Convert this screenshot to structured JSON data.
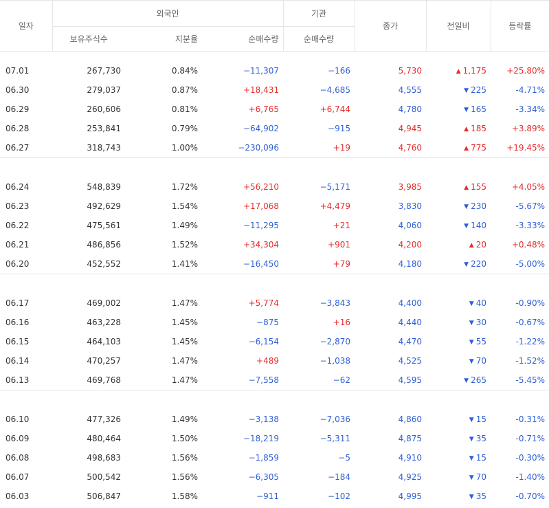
{
  "headers": {
    "date": "일자",
    "foreign": "외국인",
    "institution": "기관",
    "holdings": "보유주식수",
    "ratio": "지분율",
    "foreign_net": "순매수량",
    "inst_net": "순매수량",
    "close": "종가",
    "change": "전일비",
    "rate": "등락률"
  },
  "colors": {
    "up": "#e82b2b",
    "down": "#2f5fd6",
    "border": "#e5e5e5"
  },
  "groups": [
    [
      {
        "date": "07.01",
        "holdings": "267,730",
        "ratio": "0.84%",
        "foreign_net": "−11,307",
        "inst_net": "−166",
        "close": "5,730",
        "dir": "up",
        "change": "1,175",
        "rate": "+25.80%"
      },
      {
        "date": "06.30",
        "holdings": "279,037",
        "ratio": "0.87%",
        "foreign_net": "+18,431",
        "inst_net": "−4,685",
        "close": "4,555",
        "dir": "down",
        "change": "225",
        "rate": "-4.71%"
      },
      {
        "date": "06.29",
        "holdings": "260,606",
        "ratio": "0.81%",
        "foreign_net": "+6,765",
        "inst_net": "+6,744",
        "close": "4,780",
        "dir": "down",
        "change": "165",
        "rate": "-3.34%"
      },
      {
        "date": "06.28",
        "holdings": "253,841",
        "ratio": "0.79%",
        "foreign_net": "−64,902",
        "inst_net": "−915",
        "close": "4,945",
        "dir": "up",
        "change": "185",
        "rate": "+3.89%"
      },
      {
        "date": "06.27",
        "holdings": "318,743",
        "ratio": "1.00%",
        "foreign_net": "−230,096",
        "inst_net": "+19",
        "close": "4,760",
        "dir": "up",
        "change": "775",
        "rate": "+19.45%"
      }
    ],
    [
      {
        "date": "06.24",
        "holdings": "548,839",
        "ratio": "1.72%",
        "foreign_net": "+56,210",
        "inst_net": "−5,171",
        "close": "3,985",
        "dir": "up",
        "change": "155",
        "rate": "+4.05%"
      },
      {
        "date": "06.23",
        "holdings": "492,629",
        "ratio": "1.54%",
        "foreign_net": "+17,068",
        "inst_net": "+4,479",
        "close": "3,830",
        "dir": "down",
        "change": "230",
        "rate": "-5.67%"
      },
      {
        "date": "06.22",
        "holdings": "475,561",
        "ratio": "1.49%",
        "foreign_net": "−11,295",
        "inst_net": "+21",
        "close": "4,060",
        "dir": "down",
        "change": "140",
        "rate": "-3.33%"
      },
      {
        "date": "06.21",
        "holdings": "486,856",
        "ratio": "1.52%",
        "foreign_net": "+34,304",
        "inst_net": "+901",
        "close": "4,200",
        "dir": "up",
        "change": "20",
        "rate": "+0.48%"
      },
      {
        "date": "06.20",
        "holdings": "452,552",
        "ratio": "1.41%",
        "foreign_net": "−16,450",
        "inst_net": "+79",
        "close": "4,180",
        "dir": "down",
        "change": "220",
        "rate": "-5.00%"
      }
    ],
    [
      {
        "date": "06.17",
        "holdings": "469,002",
        "ratio": "1.47%",
        "foreign_net": "+5,774",
        "inst_net": "−3,843",
        "close": "4,400",
        "dir": "down",
        "change": "40",
        "rate": "-0.90%"
      },
      {
        "date": "06.16",
        "holdings": "463,228",
        "ratio": "1.45%",
        "foreign_net": "−875",
        "inst_net": "+16",
        "close": "4,440",
        "dir": "down",
        "change": "30",
        "rate": "-0.67%"
      },
      {
        "date": "06.15",
        "holdings": "464,103",
        "ratio": "1.45%",
        "foreign_net": "−6,154",
        "inst_net": "−2,870",
        "close": "4,470",
        "dir": "down",
        "change": "55",
        "rate": "-1.22%"
      },
      {
        "date": "06.14",
        "holdings": "470,257",
        "ratio": "1.47%",
        "foreign_net": "+489",
        "inst_net": "−1,038",
        "close": "4,525",
        "dir": "down",
        "change": "70",
        "rate": "-1.52%"
      },
      {
        "date": "06.13",
        "holdings": "469,768",
        "ratio": "1.47%",
        "foreign_net": "−7,558",
        "inst_net": "−62",
        "close": "4,595",
        "dir": "down",
        "change": "265",
        "rate": "-5.45%"
      }
    ],
    [
      {
        "date": "06.10",
        "holdings": "477,326",
        "ratio": "1.49%",
        "foreign_net": "−3,138",
        "inst_net": "−7,036",
        "close": "4,860",
        "dir": "down",
        "change": "15",
        "rate": "-0.31%"
      },
      {
        "date": "06.09",
        "holdings": "480,464",
        "ratio": "1.50%",
        "foreign_net": "−18,219",
        "inst_net": "−5,311",
        "close": "4,875",
        "dir": "down",
        "change": "35",
        "rate": "-0.71%"
      },
      {
        "date": "06.08",
        "holdings": "498,683",
        "ratio": "1.56%",
        "foreign_net": "−1,859",
        "inst_net": "−5",
        "close": "4,910",
        "dir": "down",
        "change": "15",
        "rate": "-0.30%"
      },
      {
        "date": "06.07",
        "holdings": "500,542",
        "ratio": "1.56%",
        "foreign_net": "−6,305",
        "inst_net": "−184",
        "close": "4,925",
        "dir": "down",
        "change": "70",
        "rate": "-1.40%"
      },
      {
        "date": "06.03",
        "holdings": "506,847",
        "ratio": "1.58%",
        "foreign_net": "−911",
        "inst_net": "−102",
        "close": "4,995",
        "dir": "down",
        "change": "35",
        "rate": "-0.70%"
      }
    ]
  ]
}
